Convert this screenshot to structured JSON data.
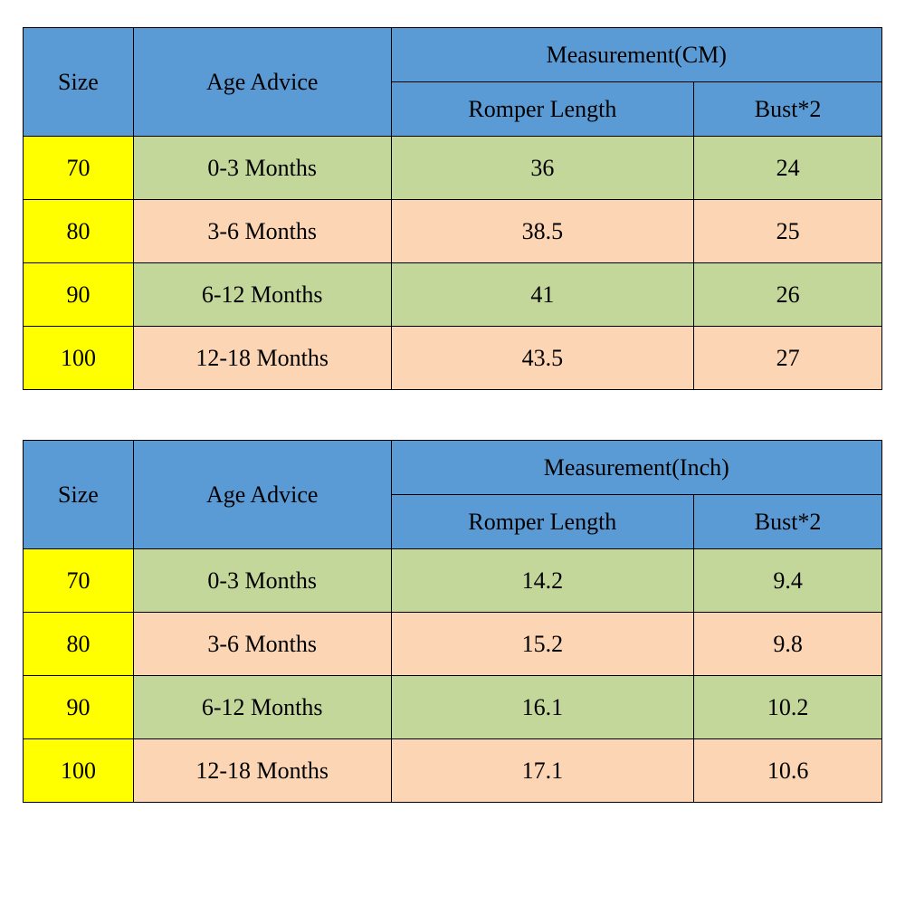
{
  "tables": [
    {
      "headers": {
        "size": "Size",
        "age": "Age Advice",
        "measurement_group": "Measurement(CM)",
        "romper": "Romper Length",
        "bust": "Bust*2"
      },
      "rows": [
        {
          "size": "70",
          "age": "0-3 Months",
          "romper": "36",
          "bust": "24",
          "row_class": "row-green"
        },
        {
          "size": "80",
          "age": "3-6 Months",
          "romper": "38.5",
          "bust": "25",
          "row_class": "row-tan"
        },
        {
          "size": "90",
          "age": "6-12 Months",
          "romper": "41",
          "bust": "26",
          "row_class": "row-green"
        },
        {
          "size": "100",
          "age": "12-18 Months",
          "romper": "43.5",
          "bust": "27",
          "row_class": "row-tan"
        }
      ]
    },
    {
      "headers": {
        "size": "Size",
        "age": "Age Advice",
        "measurement_group": "Measurement(Inch)",
        "romper": "Romper Length",
        "bust": "Bust*2"
      },
      "rows": [
        {
          "size": "70",
          "age": "0-3 Months",
          "romper": "14.2",
          "bust": "9.4",
          "row_class": "row-green"
        },
        {
          "size": "80",
          "age": "3-6 Months",
          "romper": "15.2",
          "bust": "9.8",
          "row_class": "row-tan"
        },
        {
          "size": "90",
          "age": "6-12 Months",
          "romper": "16.1",
          "bust": "10.2",
          "row_class": "row-green"
        },
        {
          "size": "100",
          "age": "12-18 Months",
          "romper": "17.1",
          "bust": "10.6",
          "row_class": "row-tan"
        }
      ]
    }
  ],
  "styling": {
    "header_bg": "#5b9bd5",
    "size_bg": "#ffff00",
    "row_green_bg": "#c4d79b",
    "row_tan_bg": "#fcd5b4",
    "border_color": "#000000",
    "font_family": "Georgia, Times New Roman, serif",
    "font_size": 26,
    "col_widths": {
      "size": 122,
      "age": 285,
      "romper": 335,
      "bust": 208
    },
    "header_row_height": 60,
    "data_row_height": 70,
    "table_gap": 55
  }
}
